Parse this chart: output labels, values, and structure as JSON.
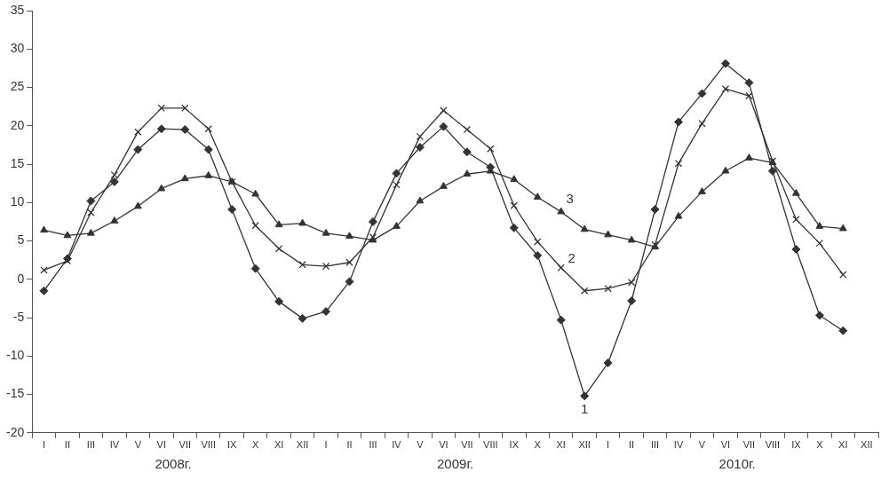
{
  "chart_data": {
    "type": "line",
    "categories": [
      "I",
      "II",
      "III",
      "IV",
      "V",
      "VI",
      "VII",
      "VIII",
      "IX",
      "X",
      "XI",
      "XII",
      "I",
      "II",
      "III",
      "IV",
      "V",
      "VI",
      "VII",
      "VIII",
      "IX",
      "X",
      "XI",
      "XII",
      "I",
      "II",
      "III",
      "IV",
      "V",
      "VI",
      "VII",
      "VIII",
      "IX",
      "X",
      "XI",
      "XII"
    ],
    "series": [
      {
        "name": "1",
        "color": "#333333",
        "marker": "diamond",
        "values": [
          -1.5,
          2.7,
          10.2,
          12.7,
          16.9,
          19.6,
          19.5,
          16.9,
          9.1,
          1.4,
          -2.9,
          -5.1,
          -4.2,
          -0.3,
          7.5,
          13.8,
          17.2,
          19.9,
          16.6,
          14.6,
          6.7,
          3.1,
          -5.3,
          -15.2,
          -10.9,
          -2.8,
          9.1,
          20.5,
          24.2,
          28.1,
          25.6,
          14.1,
          3.9,
          -4.7,
          -6.7,
          null
        ]
      },
      {
        "name": "2",
        "color": "#333333",
        "marker": "cross",
        "values": [
          1.2,
          2.4,
          8.7,
          13.6,
          19.2,
          22.3,
          22.3,
          19.6,
          12.7,
          7.0,
          4.0,
          1.9,
          1.7,
          2.2,
          5.5,
          12.3,
          18.6,
          22.0,
          19.5,
          17.0,
          9.6,
          4.9,
          1.5,
          -1.5,
          -1.2,
          -0.4,
          4.5,
          15.1,
          20.3,
          24.8,
          23.9,
          15.4,
          7.8,
          4.7,
          0.6,
          null
        ]
      },
      {
        "name": "3",
        "color": "#333333",
        "marker": "triangle",
        "values": [
          6.4,
          5.7,
          6.0,
          7.6,
          9.5,
          11.8,
          13.1,
          13.5,
          12.7,
          11.1,
          7.1,
          7.3,
          6.0,
          5.6,
          5.1,
          6.9,
          10.2,
          12.1,
          13.7,
          14.1,
          13.0,
          10.7,
          8.8,
          6.5,
          5.8,
          5.1,
          4.2,
          8.2,
          11.4,
          14.1,
          15.8,
          15.2,
          11.2,
          6.9,
          6.6,
          null
        ]
      }
    ],
    "ylim": [
      -20,
      35
    ],
    "yticks": [
      -20,
      -15,
      -10,
      -5,
      0,
      5,
      10,
      15,
      20,
      25,
      30,
      35
    ],
    "annotations": [
      "2008г.",
      "2009г.",
      "2010г."
    ],
    "grid": false,
    "legend": false
  }
}
